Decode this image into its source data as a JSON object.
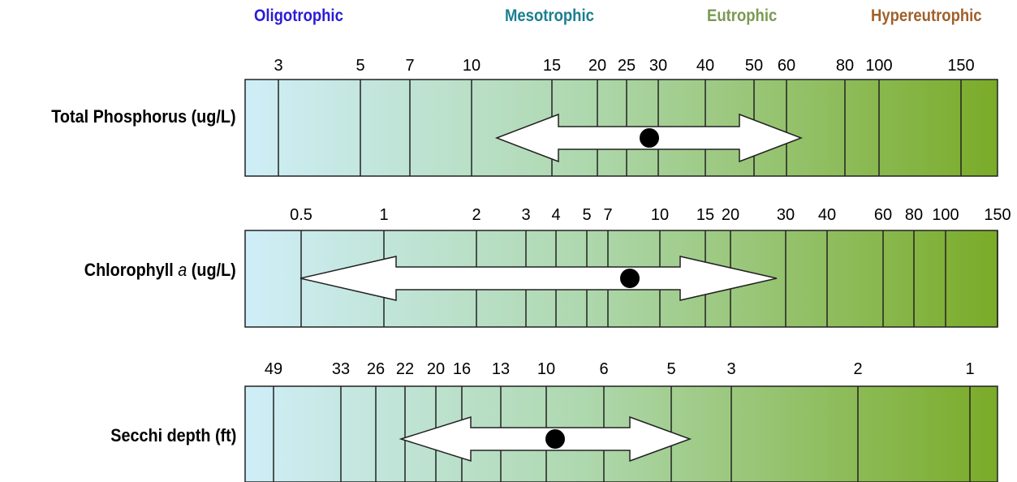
{
  "chart_data": {
    "type": "table",
    "trophic_states": [
      {
        "label": "Oligotrophic",
        "color": "#2b1bd6"
      },
      {
        "label": "Mesotrophic",
        "color": "#1a7f8f"
      },
      {
        "label": "Eutrophic",
        "color": "#7a9a52"
      },
      {
        "label": "Hypereutrophic",
        "color": "#a0602a"
      }
    ],
    "gradient_colors": [
      "#cfeef8",
      "#aed8ae",
      "#7aab28"
    ],
    "rows": [
      {
        "label_main": "Total Phosphorus (ug/L)",
        "label_italic": "",
        "label_rest": "",
        "ticks": [
          "3",
          "5",
          "7",
          "10",
          "15",
          "20",
          "25",
          "30",
          "40",
          "50",
          "60",
          "80",
          "100",
          "150"
        ],
        "range": [
          "15",
          "60"
        ],
        "point": "30"
      },
      {
        "label_main": "Chlorophyll ",
        "label_italic": "a",
        "label_rest": " (ug/L)",
        "ticks": [
          "0.5",
          "1",
          "2",
          "3",
          "4",
          "5",
          "7",
          "10",
          "15",
          "20",
          "30",
          "40",
          "60",
          "80",
          "100",
          "150"
        ],
        "range": [
          "0.5",
          "30"
        ],
        "point": "10"
      },
      {
        "label_main": "Secchi depth (ft)",
        "label_italic": "",
        "label_rest": "",
        "ticks": [
          "49",
          "33",
          "26",
          "22",
          "20",
          "16",
          "13",
          "10",
          "6",
          "5",
          "3",
          "2",
          "1"
        ],
        "range": [
          "16",
          "5"
        ],
        "point": "10"
      }
    ]
  }
}
